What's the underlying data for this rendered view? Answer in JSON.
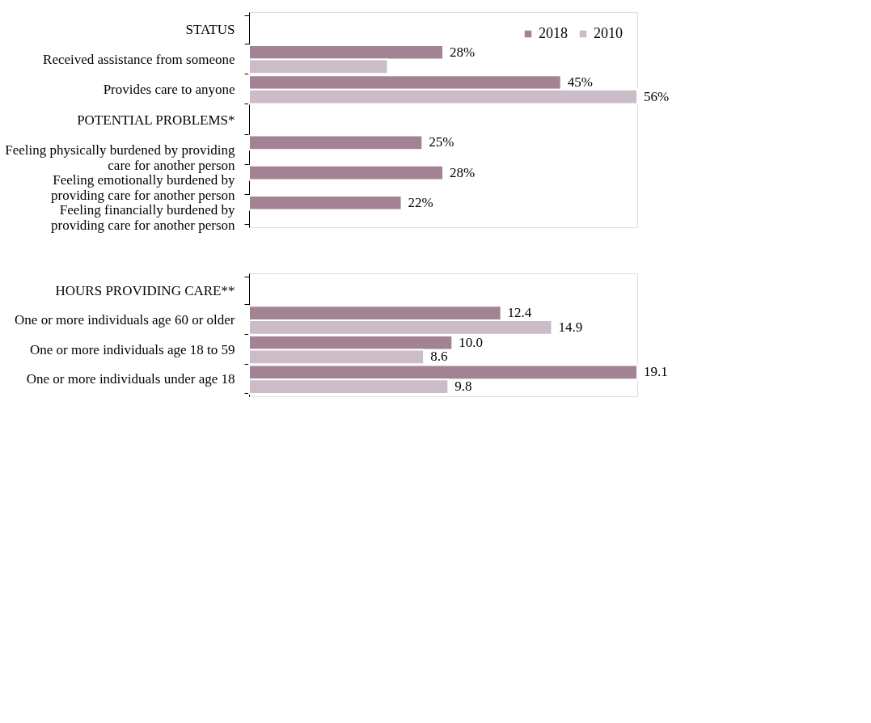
{
  "chart_data": [
    {
      "type": "bar",
      "orientation": "horizontal",
      "categories": [
        "STATUS",
        "Received assistance from someone",
        "Provides care to anyone",
        "POTENTIAL PROBLEMS*",
        "Feeling physically burdened by providing care for another person",
        "Feeling emotionally burdened by providing care for another person",
        "Feeling financially burdened by providing care for another person"
      ],
      "series": [
        {
          "name": "2018",
          "color": "#a38393",
          "values": [
            null,
            28,
            45,
            null,
            25,
            28,
            22
          ],
          "value_labels": [
            null,
            "28%",
            "45%",
            null,
            "25%",
            "28%",
            "22%"
          ]
        },
        {
          "name": "2010",
          "color": "#cbbcc8",
          "values": [
            null,
            20,
            56,
            null,
            null,
            null,
            null
          ],
          "value_labels": [
            null,
            null,
            "56%",
            null,
            null,
            null,
            null
          ]
        }
      ],
      "legend": "top right"
    },
    {
      "type": "bar",
      "orientation": "horizontal",
      "categories": [
        "HOURS PROVIDING CARE**",
        "One or more individuals age 60 or older",
        "One or more individuals age 18 to 59",
        "One or more individuals under age 18"
      ],
      "series": [
        {
          "name": "2018",
          "color": "#a38393",
          "values": [
            null,
            12.4,
            10.0,
            19.1
          ],
          "value_labels": [
            null,
            "12.4",
            "10.0",
            "19.1"
          ]
        },
        {
          "name": "2010",
          "color": "#cbbcc8",
          "values": [
            null,
            14.9,
            8.6,
            9.8
          ],
          "value_labels": [
            null,
            "14.9",
            "8.6",
            "9.8"
          ]
        }
      ],
      "legend": false
    }
  ]
}
